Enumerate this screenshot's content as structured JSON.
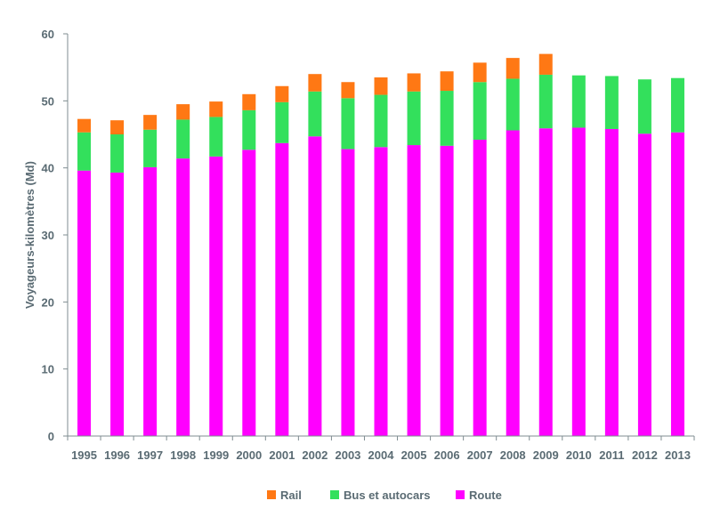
{
  "chart_data": {
    "type": "bar",
    "stacked": true,
    "ylabel": "Voyageurs-kilomètres (Md)",
    "xlabel": "",
    "ylim": [
      0,
      60
    ],
    "yticks": [
      0,
      10,
      20,
      30,
      40,
      50,
      60
    ],
    "grid": false,
    "legend_position": "bottom",
    "categories": [
      "1995",
      "1996",
      "1997",
      "1998",
      "1999",
      "2000",
      "2001",
      "2002",
      "2003",
      "2004",
      "2005",
      "2006",
      "2007",
      "2008",
      "2009",
      "2010",
      "2011",
      "2012",
      "2013"
    ],
    "series": [
      {
        "name": "Route",
        "color": "#ff00ff",
        "values": [
          39.6,
          39.3,
          40.1,
          41.4,
          41.7,
          42.7,
          43.7,
          44.7,
          42.8,
          43.1,
          43.4,
          43.3,
          44.2,
          45.6,
          45.9,
          46.0,
          45.8,
          45.1,
          45.3
        ]
      },
      {
        "name": "Bus et autocars",
        "color": "#33e05c",
        "values": [
          5.7,
          5.7,
          5.6,
          5.8,
          5.9,
          5.9,
          6.1,
          6.7,
          7.6,
          7.8,
          8.0,
          8.2,
          8.6,
          7.7,
          8.0,
          7.8,
          7.9,
          8.1,
          8.1
        ]
      },
      {
        "name": "Rail",
        "color": "#ff7814",
        "values": [
          2.0,
          2.1,
          2.2,
          2.3,
          2.3,
          2.4,
          2.4,
          2.6,
          2.4,
          2.6,
          2.7,
          2.9,
          2.9,
          3.1,
          3.1,
          0,
          0,
          0,
          0
        ]
      }
    ],
    "legend": [
      {
        "name": "Rail",
        "color": "#ff7814"
      },
      {
        "name": "Bus et autocars",
        "color": "#33e05c"
      },
      {
        "name": "Route",
        "color": "#ff00ff"
      }
    ],
    "axis_color": "#7f8c91",
    "text_color": "#5a6b73"
  }
}
